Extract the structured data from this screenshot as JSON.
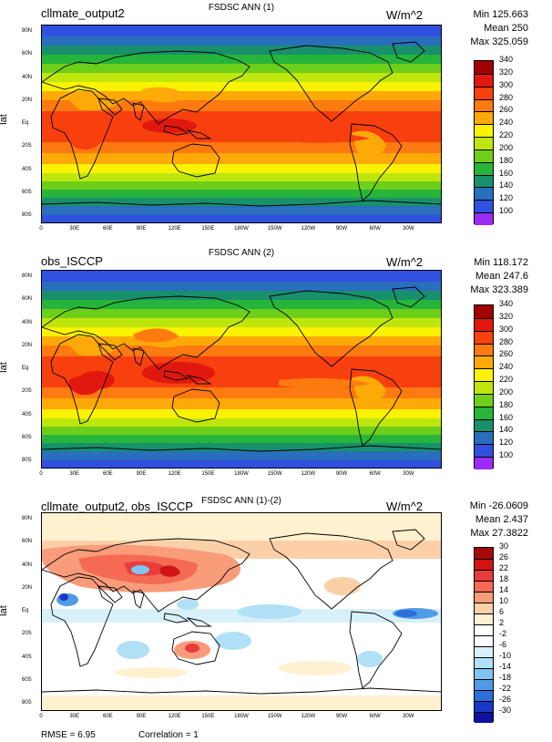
{
  "panels": [
    {
      "id": "p1",
      "left_title": "cllmate_output2",
      "center_title": "FSDSC ANN (1)",
      "units": "W/m^2",
      "stats": {
        "min": "Min 125.663",
        "mean": "Mean 250",
        "max": "Max 325.059"
      },
      "ylabel": "lat",
      "colorbar_labels": [
        "340",
        "320",
        "300",
        "280",
        "260",
        "240",
        "220",
        "200",
        "180",
        "160",
        "140",
        "120",
        "100"
      ],
      "colors": [
        "#a30000",
        "#e0180f",
        "#f8400f",
        "#fd7a10",
        "#fda908",
        "#fbf202",
        "#bfe60c",
        "#6dcf19",
        "#26b43b",
        "#17906b",
        "#2a6ebe",
        "#3050e0",
        "#9a2cf5"
      ]
    },
    {
      "id": "p2",
      "left_title": "obs_ISCCP",
      "center_title": "FSDSC ANN (2)",
      "units": "W/m^2",
      "stats": {
        "min": "Min 118.172",
        "mean": "Mean 247.6",
        "max": "Max 323.389"
      },
      "ylabel": "lat",
      "colorbar_labels": [
        "340",
        "320",
        "300",
        "280",
        "260",
        "240",
        "220",
        "200",
        "180",
        "160",
        "140",
        "120",
        "100"
      ],
      "colors": [
        "#a30000",
        "#e0180f",
        "#f8400f",
        "#fd7a10",
        "#fda908",
        "#fbf202",
        "#bfe60c",
        "#6dcf19",
        "#26b43b",
        "#17906b",
        "#2a6ebe",
        "#3050e0",
        "#9a2cf5"
      ]
    },
    {
      "id": "p3",
      "left_title": "cllmate_output2, obs_ISCCP",
      "center_title": "FSDSC ANN (1)-(2)",
      "units": "W/m^2",
      "stats": {
        "min": "Min -26.0609",
        "mean": "Mean 2.437",
        "max": "Max 27.3822"
      },
      "ylabel": "lat",
      "colorbar_labels": [
        "30",
        "26",
        "22",
        "18",
        "14",
        "10",
        "6",
        "2",
        "-2",
        "-6",
        "-10",
        "-14",
        "-18",
        "-22",
        "-26",
        "-30"
      ],
      "colors": [
        "#a30a0a",
        "#d01515",
        "#e83c3c",
        "#f46a55",
        "#f89c7a",
        "#fbd0a8",
        "#fff0d0",
        "#ffffff",
        "#ffffff",
        "#d8f0fa",
        "#b0e0f6",
        "#80c4f0",
        "#4f9be6",
        "#2e6ed8",
        "#1a38c8",
        "#1010a0"
      ]
    }
  ],
  "x_ticks": [
    "0",
    "30E",
    "60E",
    "90E",
    "120E",
    "150E",
    "180W",
    "150W",
    "120W",
    "90W",
    "60W",
    "30W"
  ],
  "y_ticks": [
    "80N",
    "60N",
    "40N",
    "20N",
    "Eq",
    "20S",
    "40S",
    "60S",
    "80S"
  ],
  "footer": {
    "rmse": "RMSE = 6.95",
    "correlation": "Correlation = 1"
  }
}
